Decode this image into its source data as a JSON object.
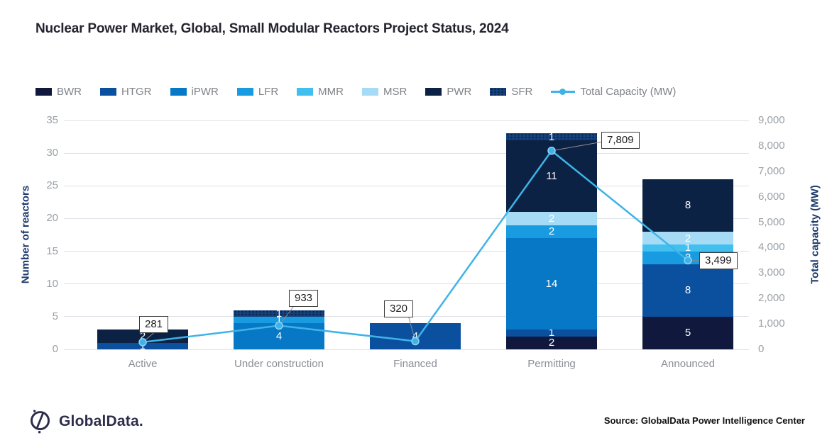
{
  "title": "Nuclear Power Market, Global, Small Modular Reactors Project Status, 2024",
  "footer": {
    "logo_text": "GlobalData.",
    "source": "Source: GlobalData Power Intelligence Center"
  },
  "colors": {
    "BWR": "#10193d",
    "HTGR": "#0b509f",
    "iPWR": "#0678c6",
    "LFR": "#189be1",
    "MMR": "#41c0f0",
    "MSR": "#a6dbf5",
    "PWR": "#0c2245",
    "SFR": "#15407a",
    "sfr_dot": "#0a1d42",
    "line": "#3fb3e8",
    "marker_ring": "#8ed4f4",
    "axis_title": "#1c3a6e",
    "tick_label": "#9aa0a6",
    "gridline": "#dde1e6",
    "leader_line": "#8c8c8c"
  },
  "chart_data": {
    "type": "bar",
    "stacked": true,
    "grid": true,
    "legend_position": "top-left",
    "categories": [
      "Active",
      "Under construction",
      "Financed",
      "Permitting",
      "Announced"
    ],
    "series": [
      {
        "name": "BWR",
        "values": [
          0,
          0,
          0,
          2,
          5
        ]
      },
      {
        "name": "HTGR",
        "values": [
          1,
          0,
          4,
          1,
          8
        ]
      },
      {
        "name": "iPWR",
        "values": [
          0,
          4,
          0,
          14,
          0
        ]
      },
      {
        "name": "LFR",
        "values": [
          0,
          1,
          0,
          2,
          2
        ]
      },
      {
        "name": "MMR",
        "values": [
          0,
          0,
          0,
          0,
          1
        ]
      },
      {
        "name": "MSR",
        "values": [
          0,
          0,
          0,
          2,
          2
        ]
      },
      {
        "name": "PWR",
        "values": [
          2,
          0,
          0,
          11,
          8
        ]
      },
      {
        "name": "SFR",
        "values": [
          0,
          1,
          0,
          1,
          0
        ]
      }
    ],
    "bar_totals": [
      3,
      6,
      4,
      33,
      26
    ],
    "line_series": {
      "name": "Total Capacity (MW)",
      "values": [
        281,
        933,
        320,
        7809,
        3499
      ],
      "labels": [
        "281",
        "933",
        "320",
        "7,809",
        "3,499"
      ]
    },
    "left_axis": {
      "label": "Number of reactors",
      "ticks": [
        0,
        5,
        10,
        15,
        20,
        25,
        30,
        35
      ],
      "max": 35
    },
    "right_axis": {
      "label": "Total capacity (MW)",
      "ticks": [
        "0",
        "1,000",
        "2,000",
        "3,000",
        "4,000",
        "5,000",
        "6,000",
        "7,000",
        "8,000",
        "9,000"
      ],
      "max": 9000
    }
  }
}
